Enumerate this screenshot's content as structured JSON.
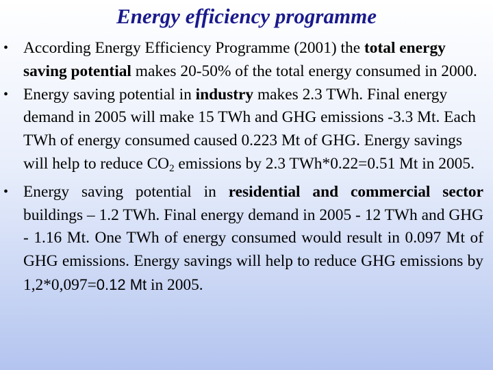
{
  "title": "Energy efficiency programme",
  "bullets": [
    {
      "p1": "According Energy Efficiency Programme (2001) the ",
      "b1": "total energy saving potential",
      "p2": " makes 20-50% of the total energy consumed in 2000."
    },
    {
      "p1": "Energy saving potential in ",
      "b1": "industry",
      "p2": " makes 2.3 TWh. Final energy demand in 2005 will make 15 TWh and GHG emissions -3.3 Mt. Each TWh of  energy consumed caused 0.223 Mt of GHG. Energy savings will help to reduce CO",
      "sub": "2",
      "p3": " emissions by 2.3 TWh*0.22=0.51 Mt in 2005."
    },
    {
      "p1": "Energy saving potential in ",
      "b1": "residential and commercial sector",
      "p2": " buildings – 1.2 TWh. Final energy demand in 2005 - 12 TWh and GHG - 1.16 Mt. One TWh of energy consumed would result in  0.097 Mt of GHG emissions. Energy savings will help to reduce GHG emissions by 1,2*0,097=",
      "sans": "0.12 Mt",
      "p3": " in 2005."
    }
  ]
}
